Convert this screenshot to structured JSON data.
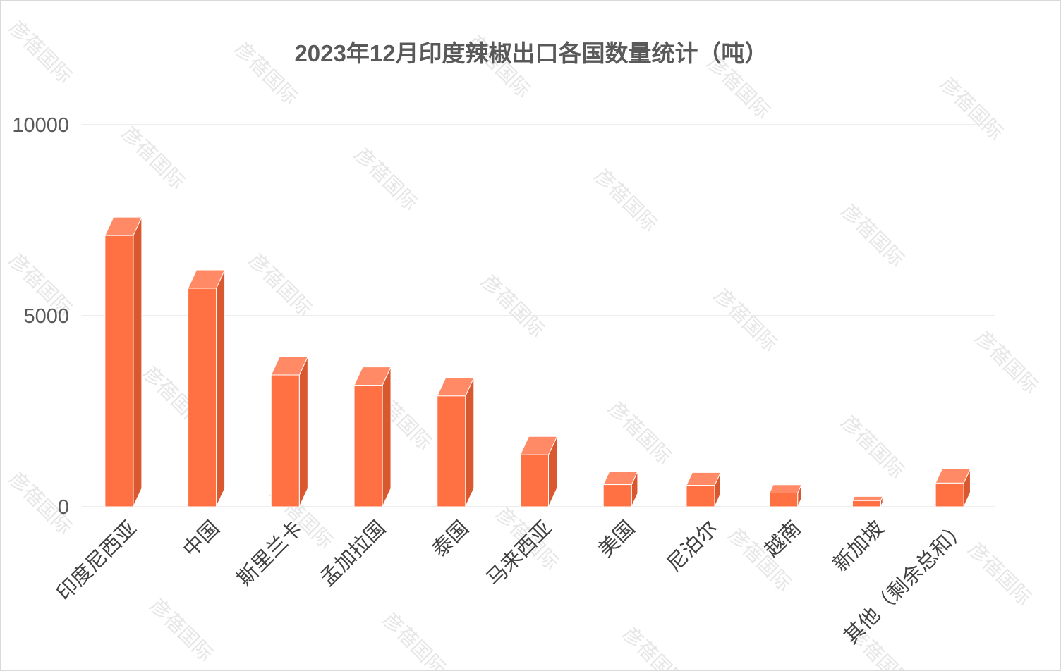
{
  "chart_data": {
    "type": "bar",
    "title": "2023年12月印度辣椒出口各国数量统计（吨）",
    "xlabel": "",
    "ylabel": "",
    "categories": [
      "印度尼西亚",
      "中国",
      "斯里兰卡",
      "孟加拉国",
      "泰国",
      "马来西亚",
      "美国",
      "尼泊尔",
      "越南",
      "新加坡",
      "其他（剩余总和）"
    ],
    "values": [
      7100,
      5720,
      3450,
      3180,
      2900,
      1360,
      580,
      560,
      360,
      160,
      620
    ],
    "ylim": [
      0,
      10000
    ],
    "yticks": [
      0,
      5000,
      10000
    ],
    "grid": true,
    "legend": "none",
    "bar_style": "3d"
  },
  "colors": {
    "bar_front": "#ff7043",
    "bar_side": "#d9582f",
    "bar_top": "#ff8a65",
    "grid": "#e8e8e8",
    "axis_text": "#595959",
    "watermark": "#e6e6e6"
  },
  "watermark_text": "彦蓓国际"
}
